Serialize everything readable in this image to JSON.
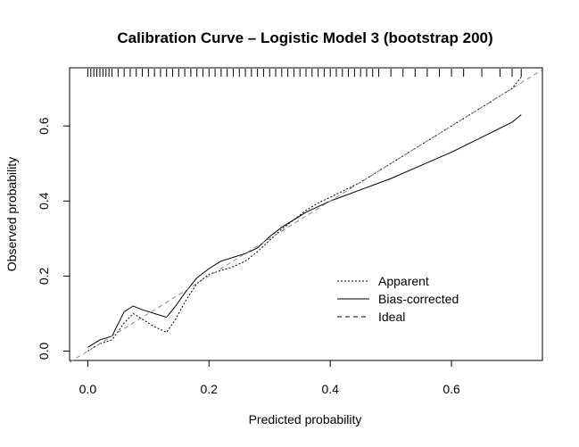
{
  "chart_data": {
    "type": "line",
    "title": "Calibration Curve – Logistic Model 3 (bootstrap 200)",
    "xlabel": "Predicted probability",
    "ylabel": "Observed probability",
    "xlim": [
      -0.03,
      0.75
    ],
    "ylim": [
      -0.025,
      0.755
    ],
    "x_ticks": [
      0.0,
      0.2,
      0.4,
      0.6
    ],
    "y_ticks": [
      0.0,
      0.2,
      0.4,
      0.6
    ],
    "x_tick_labels": [
      "0.0",
      "0.2",
      "0.4",
      "0.6"
    ],
    "y_tick_labels": [
      "0.0",
      "0.2",
      "0.4",
      "0.6"
    ],
    "grid": false,
    "legend_position": "bottom-right",
    "series": [
      {
        "name": "Apparent",
        "style": "dotted",
        "x": [
          0.0,
          0.02,
          0.04,
          0.06,
          0.075,
          0.09,
          0.11,
          0.13,
          0.145,
          0.16,
          0.18,
          0.2,
          0.22,
          0.24,
          0.26,
          0.28,
          0.3,
          0.32,
          0.34,
          0.36,
          0.38,
          0.4,
          0.45,
          0.5,
          0.55,
          0.6,
          0.65,
          0.7,
          0.715
        ],
        "y": [
          0.0,
          0.02,
          0.03,
          0.075,
          0.1,
          0.085,
          0.065,
          0.05,
          0.085,
          0.13,
          0.18,
          0.205,
          0.215,
          0.225,
          0.24,
          0.265,
          0.295,
          0.325,
          0.35,
          0.375,
          0.395,
          0.41,
          0.45,
          0.5,
          0.55,
          0.6,
          0.65,
          0.7,
          0.73
        ]
      },
      {
        "name": "Bias-corrected",
        "style": "solid",
        "x": [
          0.0,
          0.02,
          0.04,
          0.06,
          0.075,
          0.09,
          0.11,
          0.13,
          0.145,
          0.16,
          0.18,
          0.2,
          0.22,
          0.24,
          0.26,
          0.28,
          0.3,
          0.32,
          0.34,
          0.36,
          0.38,
          0.4,
          0.45,
          0.5,
          0.55,
          0.6,
          0.65,
          0.7,
          0.715
        ],
        "y": [
          0.01,
          0.03,
          0.04,
          0.105,
          0.12,
          0.11,
          0.1,
          0.09,
          0.12,
          0.155,
          0.195,
          0.22,
          0.24,
          0.25,
          0.26,
          0.275,
          0.305,
          0.33,
          0.35,
          0.37,
          0.385,
          0.4,
          0.43,
          0.46,
          0.495,
          0.53,
          0.57,
          0.61,
          0.63
        ]
      },
      {
        "name": "Ideal",
        "style": "dashed",
        "x": [
          -0.03,
          0.75
        ],
        "y": [
          -0.03,
          0.75
        ]
      }
    ],
    "rug": [
      0.0,
      0.005,
      0.01,
      0.015,
      0.02,
      0.025,
      0.03,
      0.035,
      0.04,
      0.05,
      0.06,
      0.07,
      0.08,
      0.09,
      0.1,
      0.11,
      0.12,
      0.13,
      0.14,
      0.15,
      0.16,
      0.17,
      0.18,
      0.19,
      0.2,
      0.21,
      0.22,
      0.23,
      0.24,
      0.25,
      0.26,
      0.27,
      0.28,
      0.29,
      0.3,
      0.31,
      0.32,
      0.33,
      0.34,
      0.35,
      0.36,
      0.37,
      0.38,
      0.39,
      0.4,
      0.41,
      0.42,
      0.43,
      0.44,
      0.45,
      0.46,
      0.47,
      0.48,
      0.5,
      0.52,
      0.54,
      0.56,
      0.58,
      0.6,
      0.62,
      0.65,
      0.68,
      0.7,
      0.715
    ]
  }
}
